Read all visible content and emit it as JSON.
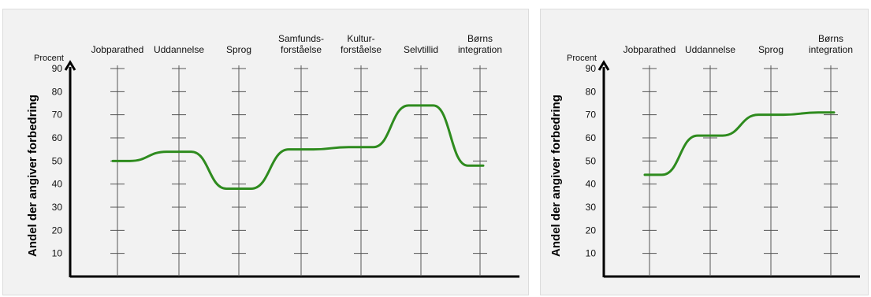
{
  "chart_data": [
    {
      "type": "line",
      "unit_label": "Procent",
      "ylabel": "Andel der angiver forbedring",
      "ylim": [
        0,
        90
      ],
      "yticks": [
        10,
        20,
        30,
        40,
        50,
        60,
        70,
        80,
        90
      ],
      "categories": [
        [
          "Jobparathed"
        ],
        [
          "Uddannelse"
        ],
        [
          "Sprog"
        ],
        [
          "Samfunds-",
          "forståelse"
        ],
        [
          "Kultur-",
          "forståelse"
        ],
        [
          "Selvtillid"
        ],
        [
          "Børns",
          "integration"
        ]
      ],
      "values": [
        50,
        54,
        38,
        55,
        56,
        74,
        48
      ],
      "line_color": "#2e8b1e",
      "grid": false
    },
    {
      "type": "line",
      "unit_label": "Procent",
      "ylabel": "Andel der angiver forbedring",
      "ylim": [
        0,
        90
      ],
      "yticks": [
        10,
        20,
        30,
        40,
        50,
        60,
        70,
        80,
        90
      ],
      "categories": [
        [
          "Jobparathed"
        ],
        [
          "Uddannelse"
        ],
        [
          "Sprog"
        ],
        [
          "Børns",
          "integration"
        ]
      ],
      "values": [
        44,
        61,
        70,
        71
      ],
      "line_color": "#2e8b1e",
      "grid": false
    }
  ]
}
